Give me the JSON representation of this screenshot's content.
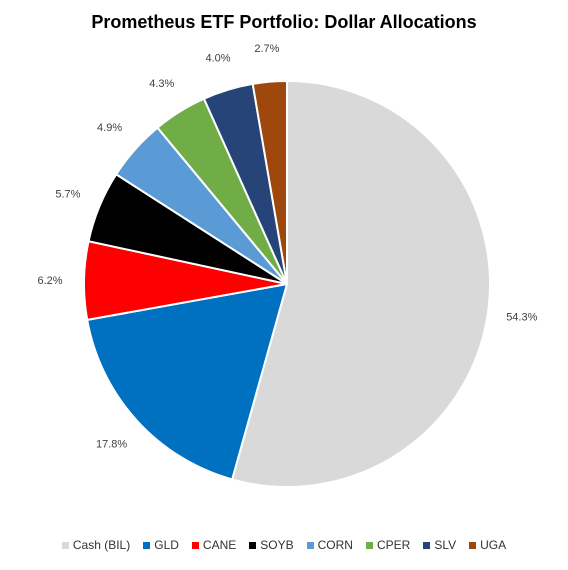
{
  "chart_data": {
    "type": "pie",
    "title": "Prometheus ETF Portfolio: Dollar Allocations",
    "categories": [
      "Cash (BIL)",
      "GLD",
      "CANE",
      "SOYB",
      "CORN",
      "CPER",
      "SLV",
      "UGA"
    ],
    "values": [
      54.3,
      17.8,
      6.2,
      5.7,
      4.9,
      4.3,
      4.0,
      2.7
    ],
    "labels": [
      "54.3%",
      "17.8%",
      "6.2%",
      "5.7%",
      "4.9%",
      "4.3%",
      "4.0%",
      "2.7%"
    ],
    "colors": [
      "#d9d9d9",
      "#0070c0",
      "#ff0000",
      "#000000",
      "#5b9bd5",
      "#70ad47",
      "#264478",
      "#9e480e"
    ],
    "start": "12 o'clock",
    "direction": "clockwise",
    "legend_position": "bottom"
  }
}
